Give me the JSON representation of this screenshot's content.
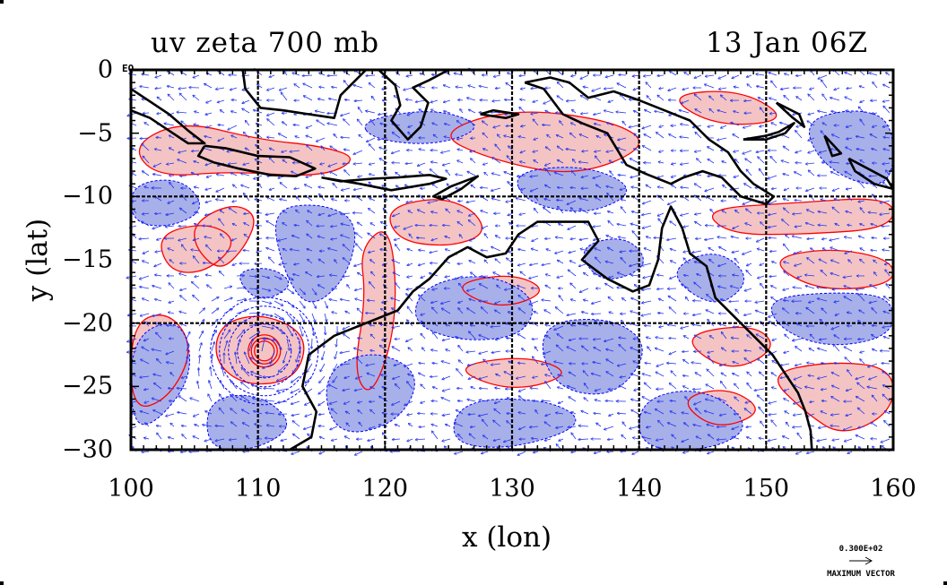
{
  "title_left": "uv zeta 700 mb",
  "title_right": "13 Jan 06Z",
  "xlabel": "x (lon)",
  "ylabel": "y (lat)",
  "equator_label": "EQ",
  "x_ticks": [
    "100",
    "110",
    "120",
    "130",
    "140",
    "150",
    "160"
  ],
  "y_ticks": [
    "0",
    "−5",
    "−10",
    "−15",
    "−20",
    "−25",
    "−30"
  ],
  "vector_legend": {
    "max_value": "0.300E+02",
    "label": "MAXIMUM VECTOR"
  },
  "map_extent": {
    "lon": [
      100,
      160
    ],
    "lat": [
      -30,
      0
    ]
  },
  "grid_lon": [
    110,
    120,
    130,
    140,
    150
  ],
  "grid_lat": [
    -10,
    -20
  ],
  "colors": {
    "positive_fill": "#f4c4c4",
    "negative_fill": "#a8b0ea",
    "positive_contour": "#ff0000",
    "negative_contour": "#0000ff",
    "vector": "#2233ee",
    "coast": "#000000"
  },
  "cyclone_center": {
    "lon": 110.5,
    "lat": -22.2
  },
  "coastlines": [
    [
      [
        112.5,
        -30
      ],
      [
        114.2,
        -29
      ],
      [
        114.6,
        -27
      ],
      [
        113.5,
        -25
      ],
      [
        114,
        -22.5
      ],
      [
        116,
        -21
      ],
      [
        118.5,
        -20
      ],
      [
        121,
        -19
      ],
      [
        122.2,
        -17.5
      ],
      [
        123.5,
        -16.5
      ],
      [
        125,
        -14.8
      ],
      [
        126.5,
        -14
      ],
      [
        128,
        -14.8
      ],
      [
        129.5,
        -14.5
      ],
      [
        130.5,
        -13
      ],
      [
        132,
        -12
      ],
      [
        134,
        -12
      ],
      [
        136,
        -12
      ],
      [
        136.8,
        -13.5
      ],
      [
        135.5,
        -15
      ],
      [
        137.5,
        -16.5
      ],
      [
        139.5,
        -17.5
      ],
      [
        140.8,
        -17
      ],
      [
        141.5,
        -15
      ],
      [
        141.8,
        -12.5
      ],
      [
        142.5,
        -10.8
      ],
      [
        143.4,
        -12.5
      ],
      [
        144,
        -14.5
      ],
      [
        145.3,
        -15.5
      ],
      [
        146,
        -18
      ],
      [
        147.5,
        -19.5
      ],
      [
        149,
        -21
      ],
      [
        150.5,
        -22.5
      ],
      [
        151.5,
        -24
      ],
      [
        152.5,
        -25.5
      ],
      [
        153.1,
        -27
      ],
      [
        153.5,
        -28.5
      ],
      [
        153.6,
        -30
      ]
    ],
    [
      [
        105.8,
        -6
      ],
      [
        107.5,
        -6.2
      ],
      [
        110,
        -6.8
      ],
      [
        112.5,
        -6.9
      ],
      [
        114.5,
        -7.8
      ],
      [
        113,
        -8.4
      ],
      [
        111,
        -8.3
      ],
      [
        108.5,
        -7.8
      ],
      [
        106.5,
        -7.3
      ],
      [
        105.3,
        -6.8
      ],
      [
        105.8,
        -6
      ]
    ],
    [
      [
        100,
        -1.5
      ],
      [
        101.5,
        -2.5
      ],
      [
        103,
        -3.5
      ],
      [
        104.5,
        -4.8
      ],
      [
        105.8,
        -5.8
      ],
      [
        104.5,
        -5.8
      ],
      [
        103,
        -4.8
      ],
      [
        101.5,
        -3.8
      ],
      [
        100,
        -3.2
      ]
    ],
    [
      [
        109,
        -1.5
      ],
      [
        110.2,
        -3
      ],
      [
        112,
        -3.2
      ],
      [
        114,
        -3.5
      ],
      [
        116,
        -3.8
      ],
      [
        116.5,
        -2
      ],
      [
        118,
        -0.5
      ],
      [
        118.5,
        0
      ]
    ],
    [
      [
        108.8,
        0
      ],
      [
        109,
        -1.5
      ]
    ],
    [
      [
        119.5,
        0
      ],
      [
        120.8,
        -1.2
      ],
      [
        121.2,
        -2.8
      ],
      [
        120.5,
        -4
      ],
      [
        121.8,
        -5.5
      ],
      [
        122.8,
        -4.5
      ],
      [
        123.4,
        -2.6
      ],
      [
        122.2,
        -1.4
      ],
      [
        123.5,
        -0.8
      ],
      [
        125,
        0
      ]
    ],
    [
      [
        115,
        -8.5
      ],
      [
        116.5,
        -8.8
      ],
      [
        119,
        -8.6
      ],
      [
        121,
        -8.5
      ],
      [
        123.5,
        -8.3
      ],
      [
        124.8,
        -8.6
      ],
      [
        123.5,
        -9
      ],
      [
        120.5,
        -9.5
      ],
      [
        118,
        -9
      ],
      [
        115,
        -8.5
      ]
    ],
    [
      [
        123.8,
        -10
      ],
      [
        125.2,
        -9.2
      ],
      [
        127.3,
        -8.4
      ],
      [
        126,
        -9.4
      ],
      [
        124.5,
        -10.2
      ],
      [
        123.8,
        -10
      ]
    ],
    [
      [
        127.5,
        -3.5
      ],
      [
        128.5,
        -3.2
      ],
      [
        130.5,
        -3.5
      ],
      [
        129.5,
        -3.8
      ],
      [
        127.5,
        -3.5
      ]
    ],
    [
      [
        131,
        -1
      ],
      [
        132.5,
        -1.5
      ],
      [
        134,
        -3.5
      ],
      [
        135.5,
        -4.2
      ],
      [
        137.5,
        -5
      ],
      [
        139,
        -7.5
      ],
      [
        140.5,
        -8.2
      ],
      [
        142.5,
        -9
      ],
      [
        143.5,
        -8.5
      ],
      [
        145,
        -8
      ],
      [
        146.5,
        -8.5
      ],
      [
        148,
        -10
      ],
      [
        150,
        -10.6
      ],
      [
        150.6,
        -10
      ],
      [
        149,
        -9
      ],
      [
        148,
        -8
      ],
      [
        147,
        -6.5
      ],
      [
        145.5,
        -5.5
      ],
      [
        144,
        -4
      ],
      [
        142,
        -3.2
      ],
      [
        140,
        -2.4
      ],
      [
        138,
        -1.7
      ],
      [
        136,
        -2.2
      ],
      [
        134.5,
        -1
      ],
      [
        133,
        -0.6
      ],
      [
        131,
        -1
      ]
    ],
    [
      [
        148.2,
        -5.5
      ],
      [
        150,
        -5.5
      ],
      [
        151.5,
        -5
      ],
      [
        152.2,
        -4.2
      ],
      [
        151,
        -4.9
      ],
      [
        150,
        -5.2
      ],
      [
        148.2,
        -5.5
      ]
    ],
    [
      [
        150.8,
        -2.6
      ],
      [
        152.6,
        -3.5
      ],
      [
        153,
        -4.5
      ],
      [
        152,
        -3.7
      ],
      [
        150.8,
        -2.6
      ]
    ],
    [
      [
        154.6,
        -5.2
      ],
      [
        155.9,
        -6.6
      ],
      [
        155.2,
        -6.8
      ],
      [
        154.6,
        -5.2
      ]
    ],
    [
      [
        156.5,
        -7
      ],
      [
        158,
        -7.8
      ],
      [
        159.5,
        -8.6
      ],
      [
        160,
        -9.4
      ],
      [
        158.5,
        -9
      ],
      [
        157,
        -8
      ],
      [
        156.5,
        -7
      ]
    ]
  ],
  "positive_blobs": [
    [
      [
        105,
        -12
      ],
      [
        108,
        -10.5
      ],
      [
        110,
        -11.5
      ],
      [
        109,
        -14
      ],
      [
        107,
        -16
      ],
      [
        105,
        -14
      ]
    ],
    [
      [
        102,
        -13
      ],
      [
        106,
        -12
      ],
      [
        108.5,
        -13.5
      ],
      [
        106,
        -16
      ],
      [
        103,
        -16
      ]
    ],
    [
      [
        120,
        -11
      ],
      [
        124,
        -10
      ],
      [
        127,
        -11
      ],
      [
        128,
        -13
      ],
      [
        125,
        -14
      ],
      [
        121,
        -13.5
      ]
    ],
    [
      [
        118,
        -14
      ],
      [
        120.5,
        -12
      ],
      [
        121,
        -20
      ],
      [
        119,
        -26
      ],
      [
        117.5,
        -24
      ],
      [
        118.5,
        -18
      ]
    ],
    [
      [
        100,
        -6
      ],
      [
        104,
        -4
      ],
      [
        110,
        -5.5
      ],
      [
        115,
        -6
      ],
      [
        118,
        -7
      ],
      [
        115,
        -8.5
      ],
      [
        108,
        -8
      ],
      [
        102,
        -8.5
      ]
    ],
    [
      [
        124,
        -5
      ],
      [
        130,
        -3
      ],
      [
        138,
        -4
      ],
      [
        141,
        -6
      ],
      [
        135,
        -8.5
      ],
      [
        128,
        -7
      ]
    ],
    [
      [
        142,
        -2
      ],
      [
        148,
        -1.5
      ],
      [
        152,
        -4
      ],
      [
        146,
        -4.5
      ]
    ],
    [
      [
        145,
        -11
      ],
      [
        152,
        -10.5
      ],
      [
        160,
        -10
      ],
      [
        160,
        -12.5
      ],
      [
        153,
        -13
      ],
      [
        147,
        -13
      ]
    ],
    [
      [
        150,
        -15
      ],
      [
        155,
        -14
      ],
      [
        160,
        -15
      ],
      [
        160,
        -17
      ],
      [
        154,
        -17.5
      ]
    ],
    [
      [
        143,
        -21
      ],
      [
        149,
        -20
      ],
      [
        151,
        -22
      ],
      [
        147,
        -24
      ]
    ],
    [
      [
        125,
        -23.5
      ],
      [
        131,
        -22.5
      ],
      [
        135,
        -24
      ],
      [
        130,
        -25.5
      ]
    ],
    [
      [
        107,
        -20
      ],
      [
        110.5,
        -19.2
      ],
      [
        114,
        -21
      ],
      [
        113,
        -24.5
      ],
      [
        109,
        -25
      ],
      [
        106.5,
        -23
      ]
    ],
    [
      [
        100,
        -20
      ],
      [
        103,
        -19
      ],
      [
        105,
        -22
      ],
      [
        103,
        -26
      ],
      [
        100,
        -27
      ]
    ],
    [
      [
        150,
        -24
      ],
      [
        155,
        -23
      ],
      [
        160,
        -23.5
      ],
      [
        160,
        -27
      ],
      [
        156,
        -29
      ],
      [
        153,
        -27
      ]
    ],
    [
      [
        143,
        -26
      ],
      [
        147,
        -25
      ],
      [
        150,
        -27
      ],
      [
        146,
        -28.5
      ]
    ],
    [
      [
        125,
        -17
      ],
      [
        130,
        -16
      ],
      [
        133,
        -17.5
      ],
      [
        129,
        -19
      ]
    ]
  ],
  "negative_blobs": [
    [
      [
        111,
        -11
      ],
      [
        115,
        -10.5
      ],
      [
        118,
        -12
      ],
      [
        117,
        -16.5
      ],
      [
        114,
        -19
      ],
      [
        112,
        -16
      ]
    ],
    [
      [
        100,
        -21
      ],
      [
        104,
        -19.5
      ],
      [
        105,
        -24
      ],
      [
        102,
        -28
      ],
      [
        100,
        -28
      ]
    ],
    [
      [
        106,
        -26
      ],
      [
        110,
        -25.5
      ],
      [
        113,
        -28
      ],
      [
        110,
        -30
      ],
      [
        106,
        -30
      ]
    ],
    [
      [
        115,
        -24
      ],
      [
        119,
        -22
      ],
      [
        123,
        -24
      ],
      [
        121,
        -28
      ],
      [
        116,
        -29
      ]
    ],
    [
      [
        123,
        -17
      ],
      [
        128,
        -16
      ],
      [
        132,
        -18
      ],
      [
        131,
        -21
      ],
      [
        126,
        -21.5
      ],
      [
        122,
        -20
      ]
    ],
    [
      [
        132,
        -20
      ],
      [
        138,
        -19.5
      ],
      [
        141,
        -22
      ],
      [
        138,
        -26
      ],
      [
        133,
        -25
      ]
    ],
    [
      [
        126,
        -26
      ],
      [
        133,
        -26
      ],
      [
        136,
        -28
      ],
      [
        130,
        -30
      ],
      [
        125,
        -29.5
      ]
    ],
    [
      [
        140,
        -26
      ],
      [
        145,
        -25
      ],
      [
        149,
        -28
      ],
      [
        146,
        -30
      ],
      [
        140,
        -30
      ]
    ],
    [
      [
        142,
        -16
      ],
      [
        146,
        -14
      ],
      [
        149,
        -16.5
      ],
      [
        146,
        -19
      ]
    ],
    [
      [
        150,
        -18
      ],
      [
        156,
        -17.5
      ],
      [
        160,
        -18
      ],
      [
        160,
        -21
      ],
      [
        155,
        -22
      ],
      [
        151,
        -20.5
      ]
    ],
    [
      [
        153,
        -4
      ],
      [
        157,
        -3
      ],
      [
        160,
        -4
      ],
      [
        160,
        -9
      ],
      [
        157,
        -9
      ],
      [
        154,
        -7
      ]
    ],
    [
      [
        118,
        -4
      ],
      [
        124,
        -3
      ],
      [
        128,
        -4.5
      ],
      [
        124,
        -6
      ],
      [
        119,
        -5.5
      ]
    ],
    [
      [
        130,
        -8
      ],
      [
        136,
        -7.5
      ],
      [
        140,
        -9.5
      ],
      [
        136,
        -11.5
      ],
      [
        131,
        -10.5
      ]
    ],
    [
      [
        100,
        -9
      ],
      [
        104,
        -8.5
      ],
      [
        106,
        -11
      ],
      [
        103,
        -12.5
      ],
      [
        100,
        -12
      ]
    ],
    [
      [
        135,
        -14
      ],
      [
        139,
        -13
      ],
      [
        141,
        -15.5
      ],
      [
        137,
        -17
      ]
    ],
    [
      [
        108,
        -16
      ],
      [
        111,
        -15.5
      ],
      [
        113,
        -17
      ],
      [
        110,
        -18.5
      ]
    ]
  ]
}
